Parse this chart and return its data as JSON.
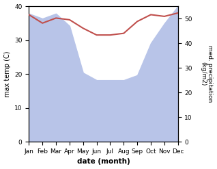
{
  "months": [
    "Jan",
    "Feb",
    "Mar",
    "Apr",
    "May",
    "Jun",
    "Jul",
    "Aug",
    "Sep",
    "Oct",
    "Nov",
    "Dec"
  ],
  "temp": [
    37.5,
    35.0,
    36.5,
    36.0,
    33.5,
    31.5,
    31.5,
    32.0,
    35.5,
    37.5,
    37.0,
    38.0
  ],
  "precip": [
    52.0,
    50.0,
    52.0,
    47.0,
    28.0,
    25.0,
    25.0,
    25.0,
    27.0,
    40.0,
    48.0,
    55.0
  ],
  "temp_color": "#c0504d",
  "precip_fill_color": "#b8c4e8",
  "ylabel_left": "max temp (C)",
  "ylabel_right": "med. precipitation\n(kg/m2)",
  "xlabel": "date (month)",
  "ylim_left": [
    0,
    40
  ],
  "ylim_right": [
    0,
    55
  ],
  "yticks_left": [
    0,
    10,
    20,
    30,
    40
  ],
  "yticks_right": [
    0,
    10,
    20,
    30,
    40,
    50
  ],
  "background_color": "#ffffff"
}
